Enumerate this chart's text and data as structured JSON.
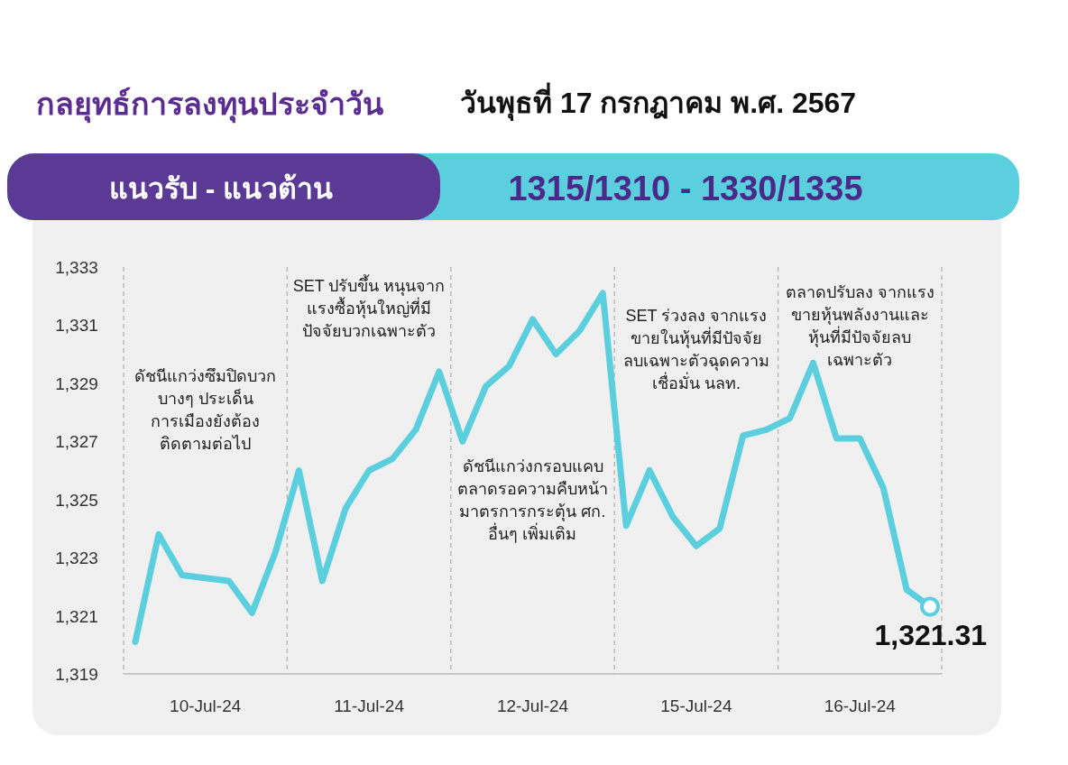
{
  "chart_data": {
    "type": "line",
    "title": "กลยุทธ์การลงทุนประจำวัน",
    "subtitle": "วันพุธที่ 17 กรกฎาคม พ.ศ. 2567",
    "categories": [
      null,
      null,
      null,
      "10-Jul-24",
      null,
      null,
      null,
      null,
      null,
      null,
      "11-Jul-24",
      null,
      null,
      null,
      null,
      null,
      null,
      "12-Jul-24",
      null,
      null,
      null,
      null,
      null,
      null,
      "15-Jul-24",
      null,
      null,
      null,
      null,
      null,
      null,
      "16-Jul-24",
      null,
      null,
      null
    ],
    "series": [
      {
        "color": "#5ccfdf",
        "values": [
          1320.1,
          1323.8,
          1322.4,
          1322.3,
          1322.2,
          1321.1,
          1323.2,
          1326.0,
          1322.2,
          1324.7,
          1326.0,
          1326.4,
          1327.4,
          1329.4,
          1327.0,
          1328.9,
          1329.6,
          1331.2,
          1330.0,
          1330.8,
          1332.1,
          1324.1,
          1326.0,
          1324.4,
          1323.4,
          1324.0,
          1327.2,
          1327.4,
          1327.8,
          1329.7,
          1327.1,
          1327.1,
          1325.4,
          1321.9,
          1321.31
        ]
      }
    ],
    "ylim": [
      1319,
      1333
    ],
    "yticks": [
      {
        "value": 1319,
        "label": "1,319"
      },
      {
        "value": 1321,
        "label": "1,321"
      },
      {
        "value": 1323,
        "label": "1,323"
      },
      {
        "value": 1325,
        "label": "1,325"
      },
      {
        "value": 1327,
        "label": "1,327"
      },
      {
        "value": 1329,
        "label": "1,329"
      },
      {
        "value": 1331,
        "label": "1,331"
      },
      {
        "value": 1333,
        "label": "1,333"
      }
    ],
    "annotations": [
      "แนวรับ - แนวต้าน",
      "1315/1310  - 1330/1335",
      "ดัชนีแกว่งซึมปิดบวก\nบางๆ ประเด็น\nการเมืองยังต้อง\nติดตามต่อไป",
      "SET ปรับขึ้น หนุนจาก\nแรงซื้อหุ้นใหญ่ที่มี\nปัจจัยบวกเฉพาะตัว",
      "ดัชนีแกว่งกรอบแคบ\nตลาดรอความคืบหน้า\nมาตรการกระตุ้น ศก.\nอื่นๆ เพิ่มเติม",
      "SET ร่วงลง จากแรง\nขายในหุ้นที่มีปัจจัย\nลบเฉพาะตัวฉุดความ\nเชื่อมั่น นลท.",
      "ตลาดปรับลง จากแรง\nขายหุ้นพลังงานและ\nหุ้นที่มีปัจจัยลบ\nเฉพาะตัว",
      {
        "text": "1,321.31",
        "y": 1321.31
      }
    ],
    "grid": false,
    "marker": "none",
    "line_style": "solid"
  }
}
